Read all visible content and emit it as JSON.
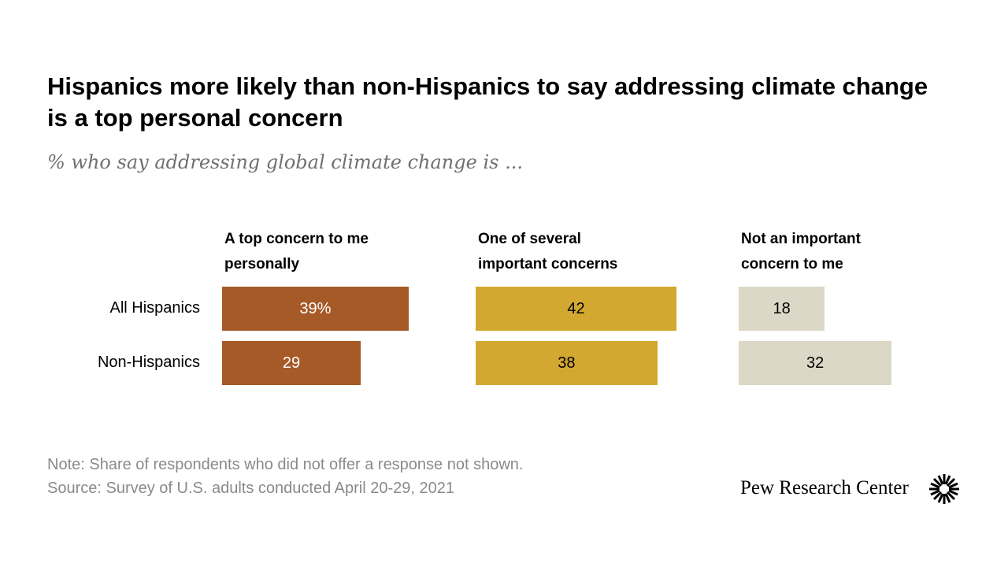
{
  "chart_data": {
    "type": "bar",
    "title": "Hispanics more likely than non-Hispanics to say addressing climate change is a top personal concern",
    "subtitle": "% who say addressing global climate change is ...",
    "categories": [
      "All Hispanics",
      "Non-Hispanics"
    ],
    "series": [
      {
        "name": "A top concern to me personally",
        "color": "#a65a28",
        "values": [
          39,
          29
        ],
        "value_labels": [
          "39%",
          "29"
        ]
      },
      {
        "name": "One of several important concerns",
        "color": "#d3a831",
        "values": [
          42,
          38
        ]
      },
      {
        "name": "Not an important concern to me",
        "color": "#dcd8c7",
        "values": [
          18,
          32
        ]
      }
    ],
    "note": "Note: Share of respondents who did not offer a response not shown.",
    "source": "Source: Survey of U.S. adults conducted April 20-29, 2021",
    "brand": "Pew Research Center"
  }
}
